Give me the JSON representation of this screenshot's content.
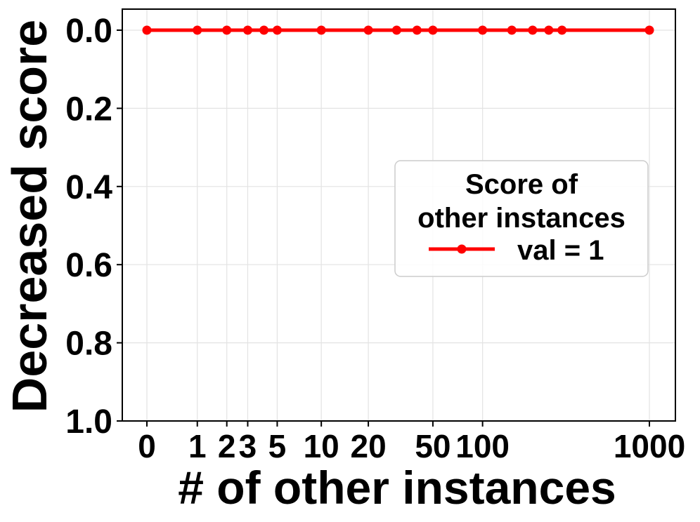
{
  "chart_data": {
    "type": "line",
    "xlabel": "# of other instances",
    "ylabel": "Decreased score",
    "ylim": [
      1.0,
      0.0
    ],
    "y_inverted": true,
    "yticks": [
      0.0,
      0.2,
      0.4,
      0.6,
      0.8,
      1.0
    ],
    "ytick_labels": [
      "0.0",
      "0.2",
      "0.4",
      "0.6",
      "0.8",
      "1.0"
    ],
    "xticks": [
      0,
      1,
      2,
      3,
      5,
      10,
      20,
      50,
      100,
      1000
    ],
    "xtick_labels": [
      "0",
      "1",
      "2",
      "3",
      "5",
      "10",
      "20",
      "50",
      "100",
      "1000"
    ],
    "x_scale": "symlog",
    "grid": true,
    "legend": {
      "title_line1": "Score of",
      "title_line2": "other instances",
      "placement": "center-right"
    },
    "series": [
      {
        "name": "val = 1",
        "color": "#ff0000",
        "x": [
          0,
          1,
          2,
          3,
          4,
          5,
          10,
          20,
          30,
          40,
          50,
          100,
          150,
          200,
          250,
          300,
          1000
        ],
        "y": [
          0,
          0,
          0,
          0,
          0,
          0,
          0,
          0,
          0,
          0,
          0,
          0,
          0,
          0,
          0,
          0,
          0
        ]
      }
    ]
  }
}
